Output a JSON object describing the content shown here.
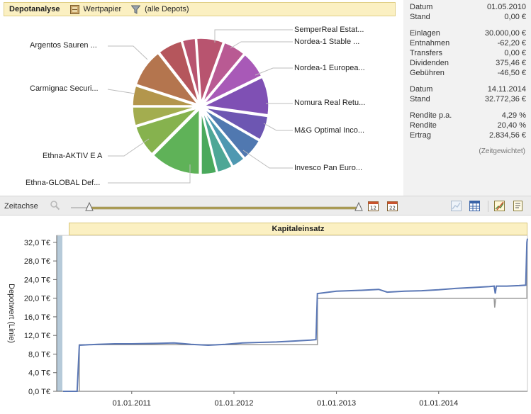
{
  "header": {
    "title": "Depotanalyse",
    "wertpapier_label": "Wertpapier",
    "filter_label": "(alle Depots)"
  },
  "pie": {
    "labels": {
      "semper": "SemperReal Estat...",
      "nordea_stable": "Nordea-1 Stable ...",
      "nordea_europa": "Nordea-1 Europea...",
      "nomura": "Nomura Real Retu...",
      "mg": "M&G Optimal Inco...",
      "invesco": "Invesco Pan Euro...",
      "argentos": "Argentos Sauren ...",
      "carmignac": "Carmignac Securi...",
      "ethna_aktiv": "Ethna-AKTIV E A",
      "ethna_global": "Ethna-GLOBAL Def..."
    },
    "colors": [
      "#b8546f",
      "#b95a93",
      "#a859b7",
      "#7f50b4",
      "#6d56b2",
      "#5078b0",
      "#4e98b1",
      "#4ea796",
      "#4aa95c",
      "#5fb258",
      "#86b24e",
      "#a3ad4f",
      "#b3964c",
      "#b4754e",
      "#b5565c"
    ]
  },
  "stats": {
    "datum1_label": "Datum",
    "datum1_value": "01.05.2010",
    "stand1_label": "Stand",
    "stand1_value": "0,00 €",
    "einlagen_label": "Einlagen",
    "einlagen_value": "30.000,00 €",
    "entnahmen_label": "Entnahmen",
    "entnahmen_value": "-62,20 €",
    "transfers_label": "Transfers",
    "transfers_value": "0,00 €",
    "dividenden_label": "Dividenden",
    "dividenden_value": "375,46 €",
    "gebuehren_label": "Gebühren",
    "gebuehren_value": "-46,50 €",
    "datum2_label": "Datum",
    "datum2_value": "14.11.2014",
    "stand2_label": "Stand",
    "stand2_value": "32.772,36 €",
    "rendite_pa_label": "Rendite p.a.",
    "rendite_pa_value": "4,29 %",
    "rendite_label": "Rendite",
    "rendite_value": "20,40 %",
    "ertrag_label": "Ertrag",
    "ertrag_value": "2.834,56 €",
    "note": "(Zeitgewichtet)"
  },
  "toolbar": {
    "zeitachse_label": "Zeitachse",
    "slider_start": 0.0,
    "slider_end": 1.0
  },
  "chart_data": {
    "type": "line",
    "title": "Kapitaleinsatz",
    "ylabel": "Depotwert (Linie)",
    "xlabel": "",
    "ylim": [
      0,
      33.5
    ],
    "yticks": [
      "0,0 T€",
      "4,0 T€",
      "8,0 T€",
      "12,0 T€",
      "16,0 T€",
      "20,0 T€",
      "24,0 T€",
      "28,0 T€",
      "32,0 T€"
    ],
    "ytick_values": [
      0,
      4,
      8,
      12,
      16,
      20,
      24,
      28,
      32
    ],
    "xlim": [
      "2010-05-01",
      "2014-11-14"
    ],
    "xticks": [
      "01.01.2011",
      "01.01.2012",
      "01.01.2013",
      "01.01.2014"
    ],
    "xtick_values": [
      "2011-01-01",
      "2012-01-01",
      "2013-01-01",
      "2014-01-01"
    ],
    "series": [
      {
        "color": "#5a77b5",
        "points": [
          [
            "2010-05-01",
            0
          ],
          [
            "2010-06-20",
            0
          ],
          [
            "2010-06-28",
            9.9
          ],
          [
            "2010-09-01",
            10.1
          ],
          [
            "2010-11-01",
            10.2
          ],
          [
            "2011-01-01",
            10.2
          ],
          [
            "2011-04-01",
            10.3
          ],
          [
            "2011-06-01",
            10.4
          ],
          [
            "2011-08-01",
            10.1
          ],
          [
            "2011-10-01",
            9.9
          ],
          [
            "2011-12-01",
            10.1
          ],
          [
            "2012-02-01",
            10.4
          ],
          [
            "2012-04-01",
            10.5
          ],
          [
            "2012-06-01",
            10.6
          ],
          [
            "2012-08-01",
            10.8
          ],
          [
            "2012-10-01",
            11.0
          ],
          [
            "2012-10-20",
            11.1
          ],
          [
            "2012-10-25",
            21.0
          ],
          [
            "2013-01-01",
            21.5
          ],
          [
            "2013-04-01",
            21.7
          ],
          [
            "2013-06-01",
            21.9
          ],
          [
            "2013-07-01",
            21.3
          ],
          [
            "2013-09-01",
            21.5
          ],
          [
            "2013-11-01",
            21.6
          ],
          [
            "2014-01-01",
            21.8
          ],
          [
            "2014-03-01",
            22.1
          ],
          [
            "2014-05-01",
            22.3
          ],
          [
            "2014-07-01",
            22.5
          ],
          [
            "2014-07-18",
            22.6
          ],
          [
            "2014-07-22",
            21.0
          ],
          [
            "2014-07-26",
            22.6
          ],
          [
            "2014-09-01",
            22.6
          ],
          [
            "2014-10-15",
            22.7
          ],
          [
            "2014-11-08",
            22.8
          ],
          [
            "2014-11-12",
            32.0
          ],
          [
            "2014-11-14",
            32.8
          ]
        ]
      },
      {
        "color": "#9a9a9a",
        "points": [
          [
            "2010-05-01",
            0
          ],
          [
            "2010-06-28",
            0
          ],
          [
            "2010-06-28",
            10.0
          ],
          [
            "2012-10-25",
            10.0
          ],
          [
            "2012-10-25",
            20.0
          ],
          [
            "2014-07-18",
            20.0
          ],
          [
            "2014-07-20",
            18.0
          ],
          [
            "2014-07-24",
            20.0
          ],
          [
            "2014-11-12",
            20.0
          ],
          [
            "2014-11-12",
            30.0
          ],
          [
            "2014-11-14",
            30.0
          ]
        ]
      }
    ]
  }
}
